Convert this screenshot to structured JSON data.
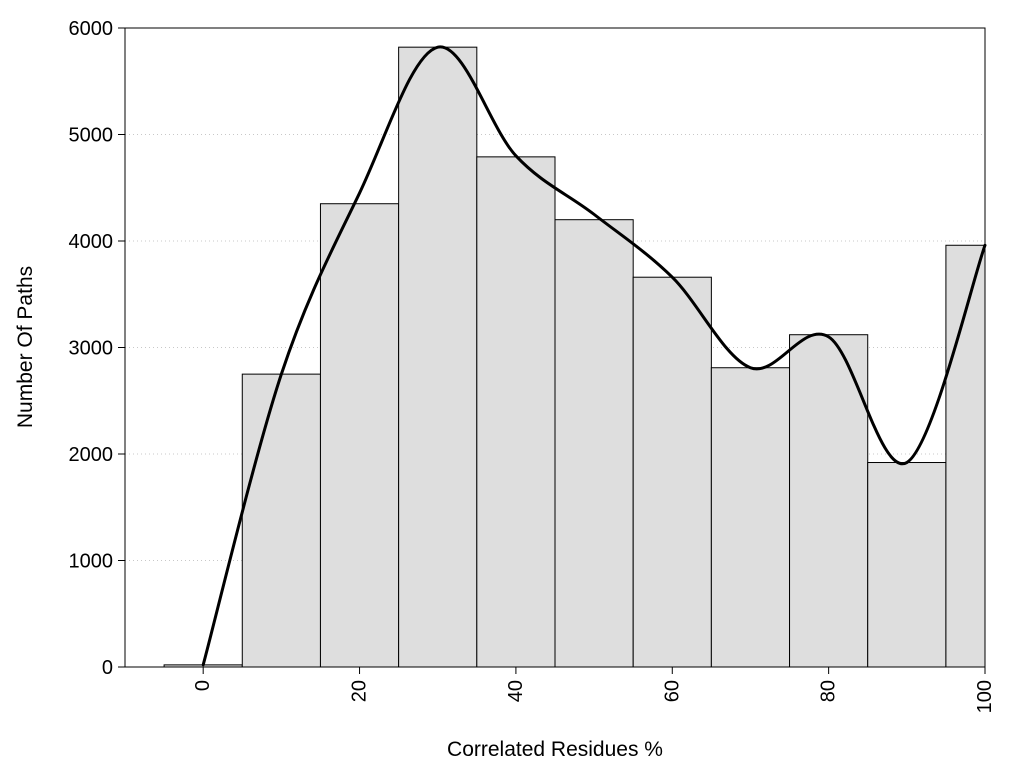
{
  "chart_data": {
    "type": "bar",
    "xlabel": "Correlated Residues %",
    "ylabel": "Number Of Paths",
    "xlim": [
      -10,
      100
    ],
    "ylim": [
      0,
      6000
    ],
    "x_ticks": [
      0,
      20,
      40,
      60,
      80,
      100
    ],
    "y_ticks": [
      0,
      1000,
      2000,
      3000,
      4000,
      5000,
      6000
    ],
    "grid": "horizontal-dotted",
    "bin_width": 10,
    "bins": [
      {
        "center": 0,
        "value": 20
      },
      {
        "center": 10,
        "value": 2750
      },
      {
        "center": 20,
        "value": 4350
      },
      {
        "center": 30,
        "value": 5820
      },
      {
        "center": 40,
        "value": 4790
      },
      {
        "center": 50,
        "value": 4200
      },
      {
        "center": 60,
        "value": 3660
      },
      {
        "center": 70,
        "value": 2810
      },
      {
        "center": 80,
        "value": 3120
      },
      {
        "center": 90,
        "value": 1920
      },
      {
        "center": 100,
        "value": 3960
      }
    ],
    "curve": {
      "type": "line",
      "x": [
        0,
        10,
        20,
        30,
        40,
        50,
        60,
        70,
        80,
        90,
        100
      ],
      "y": [
        20,
        2750,
        4450,
        5820,
        4800,
        4250,
        3660,
        2810,
        3100,
        1920,
        3960
      ]
    },
    "bar_color": "#dedede",
    "line_color": "#000000"
  }
}
